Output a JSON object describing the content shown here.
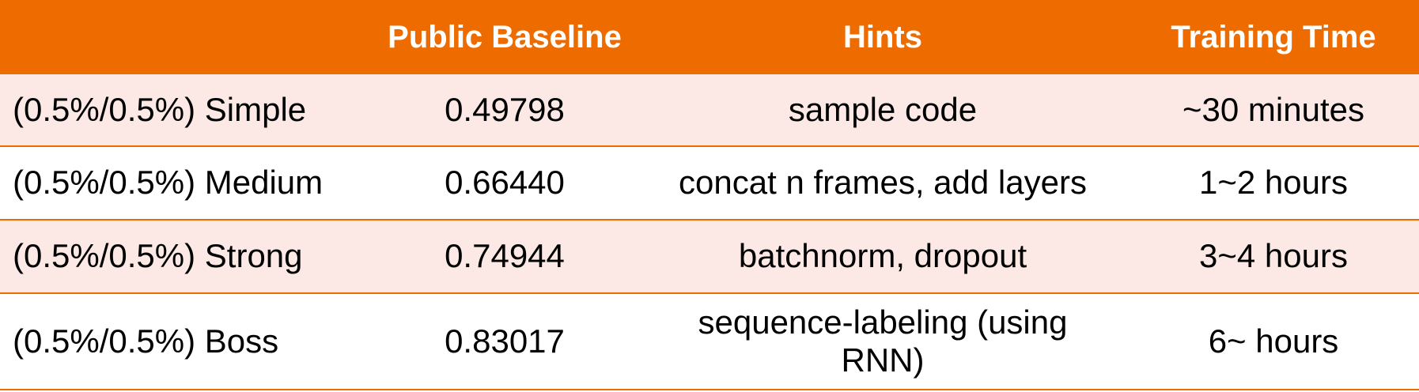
{
  "table": {
    "header": [
      "",
      "Public Baseline",
      "Hints",
      "Training Time"
    ],
    "rows": [
      {
        "name": "(0.5%/0.5%) Simple",
        "baseline": "0.49798",
        "hints": "sample code",
        "time": "~30 minutes"
      },
      {
        "name": "(0.5%/0.5%) Medium",
        "baseline": "0.66440",
        "hints": "concat n frames, add layers",
        "time": "1~2 hours"
      },
      {
        "name": "(0.5%/0.5%) Strong",
        "baseline": "0.74944",
        "hints": "batchnorm, dropout",
        "time": "3~4 hours"
      },
      {
        "name": "(0.5%/0.5%) Boss",
        "baseline": "0.83017",
        "hints": "sequence-labeling (using RNN)",
        "time": "6~ hours"
      }
    ]
  },
  "colors": {
    "header_bg": "#EE6B00",
    "header_text": "#FFFFFF",
    "alt_row_bg": "#FCE8E4",
    "row_bg": "#FFFFFF",
    "divider": "#EE6B00"
  }
}
